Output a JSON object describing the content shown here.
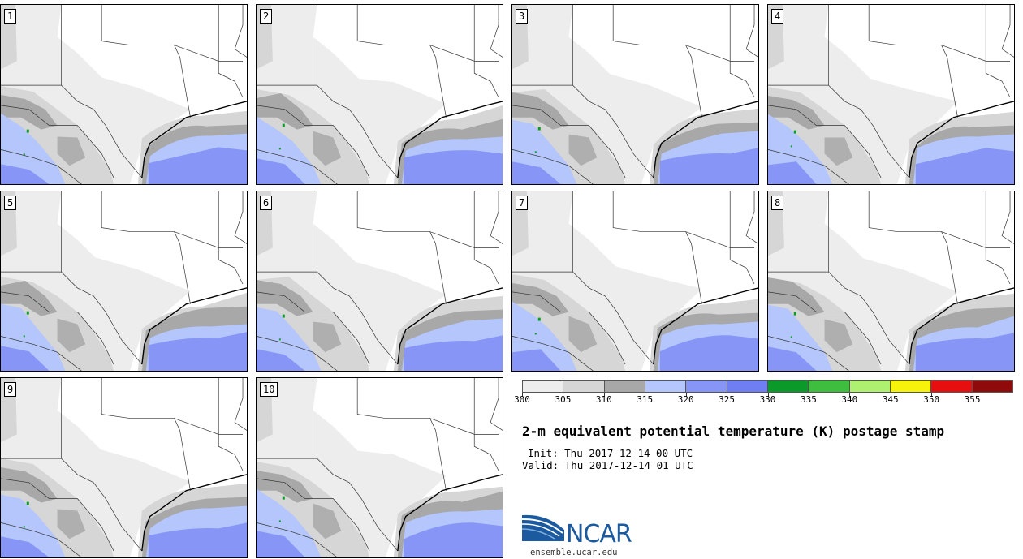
{
  "members": [
    {
      "label": "1"
    },
    {
      "label": "2"
    },
    {
      "label": "3"
    },
    {
      "label": "4"
    },
    {
      "label": "5"
    },
    {
      "label": "6"
    },
    {
      "label": "7"
    },
    {
      "label": "8"
    },
    {
      "label": "9"
    },
    {
      "label": "10"
    }
  ],
  "colorbar": {
    "colors": [
      "#ededed",
      "#d6d6d6",
      "#a8a8a8",
      "#b4c6fb",
      "#8796f6",
      "#6f7ef2",
      "#0b9a2a",
      "#3fbd3f",
      "#aef070",
      "#f6f20a",
      "#e60e0e",
      "#8f0a0a"
    ],
    "tick_labels": [
      "300",
      "305",
      "310",
      "315",
      "320",
      "325",
      "330",
      "335",
      "340",
      "345",
      "350",
      "355"
    ]
  },
  "title": "2-m equivalent potential temperature (K) postage stamp",
  "init": "Init: Thu 2017-12-14 00 UTC",
  "valid": "Valid: Thu 2017-12-14 01 UTC",
  "logo_text": "NCAR",
  "site": "ensemble.ucar.edu"
}
